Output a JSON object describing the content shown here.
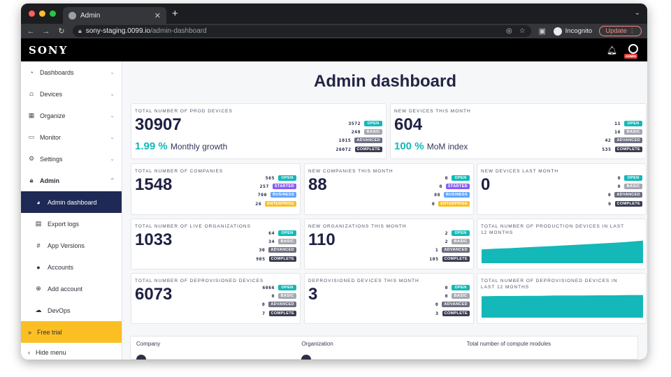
{
  "browser": {
    "tab_title": "Admin",
    "url_host": "sony-staging.0099.io",
    "url_path": "/admin-dashboard",
    "incognito_label": "Incognito",
    "update_label": "Update"
  },
  "header": {
    "logo": "SONY",
    "admin_tag": "ADMIN"
  },
  "sidebar": {
    "items": [
      {
        "label": "Dashboards",
        "icon": "gauge-icon"
      },
      {
        "label": "Devices",
        "icon": "devices-icon"
      },
      {
        "label": "Organize",
        "icon": "grid-icon"
      },
      {
        "label": "Monitor",
        "icon": "monitor-icon"
      },
      {
        "label": "Settings",
        "icon": "gear-icon"
      },
      {
        "label": "Admin",
        "icon": "lock-icon"
      }
    ],
    "admin_sub": [
      {
        "label": "Admin dashboard",
        "icon": "dashboard-icon"
      },
      {
        "label": "Export logs",
        "icon": "export-icon"
      },
      {
        "label": "App Versions",
        "icon": "hash-icon"
      },
      {
        "label": "Accounts",
        "icon": "person-icon"
      },
      {
        "label": "Add account",
        "icon": "plus-circle-icon"
      },
      {
        "label": "DevOps",
        "icon": "cloud-icon"
      }
    ],
    "free_trial": "Free trial",
    "hide_menu": "Hide menu"
  },
  "page": {
    "title": "Admin dashboard"
  },
  "badge_colors": {
    "open": "#14b8b8",
    "basic": "#a5a7b3",
    "advanced": "#6b6e80",
    "complete": "#3a3d52",
    "starter": "#8b5cf6",
    "business": "#60a5fa",
    "enterprise": "#fbbf24"
  },
  "cards": {
    "prod_devices": {
      "label": "Total number of prod devices",
      "value": "30907",
      "growth_pct": "1.99 %",
      "growth_text": "Monthly growth",
      "rows": [
        {
          "value": "3572",
          "badge": "OPEN"
        },
        {
          "value": "248",
          "badge": "BASIC"
        },
        {
          "value": "1015",
          "badge": "ADVANCED"
        },
        {
          "value": "26072",
          "badge": "COMPLETE"
        }
      ]
    },
    "new_devices_month": {
      "label": "New devices this month",
      "value": "604",
      "growth_pct": "100 %",
      "growth_text": "MoM index",
      "rows": [
        {
          "value": "11",
          "badge": "OPEN"
        },
        {
          "value": "16",
          "badge": "BASIC"
        },
        {
          "value": "42",
          "badge": "ADVANCED"
        },
        {
          "value": "535",
          "badge": "COMPLETE"
        }
      ]
    },
    "companies": {
      "label": "Total number of companies",
      "value": "1548",
      "rows": [
        {
          "value": "565",
          "badge": "OPEN"
        },
        {
          "value": "257",
          "badge": "STARTER"
        },
        {
          "value": "700",
          "badge": "BUSINESS"
        },
        {
          "value": "26",
          "badge": "ENTERPRISE"
        }
      ]
    },
    "new_companies": {
      "label": "New companies this month",
      "value": "88",
      "rows": [
        {
          "value": "0",
          "badge": "OPEN"
        },
        {
          "value": "0",
          "badge": "STARTER"
        },
        {
          "value": "88",
          "badge": "BUSINESS"
        },
        {
          "value": "0",
          "badge": "ENTERPRISE"
        }
      ]
    },
    "new_devices_last": {
      "label": "New devices last month",
      "value": "0",
      "rows": [
        {
          "value": "0",
          "badge": "OPEN"
        },
        {
          "value": "0",
          "badge": "BASIC"
        },
        {
          "value": "0",
          "badge": "ADVANCED"
        },
        {
          "value": "0",
          "badge": "COMPLETE"
        }
      ]
    },
    "live_orgs": {
      "label": "Total number of live organizations",
      "value": "1033",
      "rows": [
        {
          "value": "64",
          "badge": "OPEN"
        },
        {
          "value": "34",
          "badge": "BASIC"
        },
        {
          "value": "30",
          "badge": "ADVANCED"
        },
        {
          "value": "905",
          "badge": "COMPLETE"
        }
      ]
    },
    "new_orgs": {
      "label": "New organizations this month",
      "value": "110",
      "rows": [
        {
          "value": "2",
          "badge": "OPEN"
        },
        {
          "value": "2",
          "badge": "BASIC"
        },
        {
          "value": "1",
          "badge": "ADVANCED"
        },
        {
          "value": "105",
          "badge": "COMPLETE"
        }
      ]
    },
    "prod_12m": {
      "label": "Total number of production devices in last 12 months"
    },
    "deprov_total": {
      "label": "Total number of deprovisioned devices",
      "value": "6073",
      "rows": [
        {
          "value": "6066",
          "badge": "OPEN"
        },
        {
          "value": "0",
          "badge": "BASIC"
        },
        {
          "value": "0",
          "badge": "ADVANCED"
        },
        {
          "value": "7",
          "badge": "COMPLETE"
        }
      ]
    },
    "deprov_month": {
      "label": "Deprovisioned devices this month",
      "value": "3",
      "rows": [
        {
          "value": "0",
          "badge": "OPEN"
        },
        {
          "value": "0",
          "badge": "BASIC"
        },
        {
          "value": "0",
          "badge": "ADVANCED"
        },
        {
          "value": "3",
          "badge": "COMPLETE"
        }
      ]
    },
    "deprov_12m": {
      "label": "Total number of deprovisioned devices in last 12 months"
    }
  },
  "table": {
    "columns": [
      "Company",
      "Organization",
      "Total number of compute modules"
    ]
  }
}
